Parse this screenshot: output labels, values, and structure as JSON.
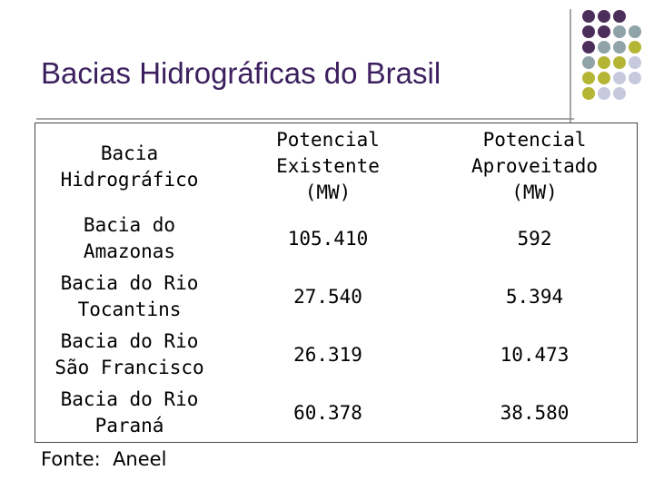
{
  "title": "Bacias Hidrográficas do Brasil",
  "table": {
    "header": [
      "Bacia Hidrográfico",
      "Potencial Existente (MW)",
      "Potencial Aproveitado (MW)"
    ],
    "rows": [
      [
        "Bacia do Amazonas",
        "105.410",
        "592"
      ],
      [
        "Bacia do Rio Tocantins",
        "27.540",
        "5.394"
      ],
      [
        "Bacia do Rio São Francisco",
        "26.319",
        "10.473"
      ],
      [
        "Bacia do Rio Paraná",
        "60.378",
        "38.580"
      ]
    ]
  },
  "source": "Fonte:  Aneel"
}
